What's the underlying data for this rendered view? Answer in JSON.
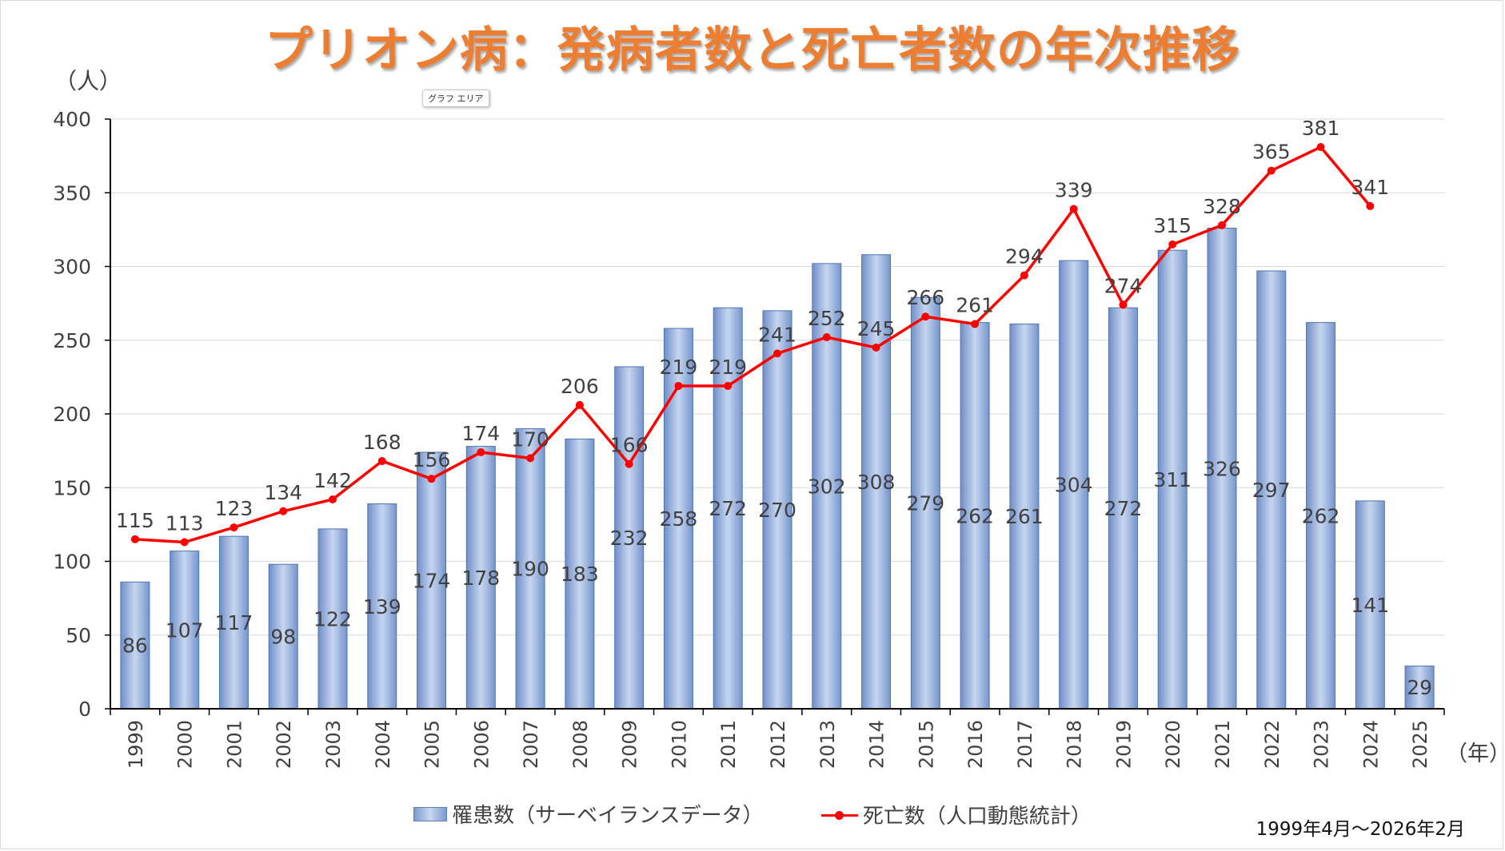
{
  "page": {
    "title": "プリオン病：発病者数と死亡者数の年次推移",
    "y_unit": "（人）",
    "x_unit": "（年）",
    "tooltip": "グラフ エリア",
    "date_range": "1999年4月～2026年2月"
  },
  "chart_data": {
    "type": "bar",
    "categories": [
      "1999",
      "2000",
      "2001",
      "2002",
      "2003",
      "2004",
      "2005",
      "2006",
      "2007",
      "2008",
      "2009",
      "2010",
      "2011",
      "2012",
      "2013",
      "2014",
      "2015",
      "2016",
      "2017",
      "2018",
      "2019",
      "2020",
      "2021",
      "2022",
      "2023",
      "2024",
      "2025"
    ],
    "series": [
      {
        "name": "罹患数（サーベイランスデータ）",
        "type": "bar",
        "color": "#7f9fd3",
        "values": [
          86,
          107,
          117,
          98,
          122,
          139,
          174,
          178,
          190,
          183,
          232,
          258,
          272,
          270,
          302,
          308,
          279,
          262,
          261,
          304,
          272,
          311,
          326,
          297,
          262,
          141,
          29
        ]
      },
      {
        "name": "死亡数（人口動態統計）",
        "type": "line",
        "color": "#ff0000",
        "values": [
          115,
          113,
          123,
          134,
          142,
          168,
          156,
          174,
          170,
          206,
          166,
          219,
          219,
          241,
          252,
          245,
          266,
          261,
          294,
          339,
          274,
          315,
          328,
          365,
          381,
          341,
          null
        ]
      }
    ],
    "ylim": [
      0,
      400
    ],
    "yticks": [
      0,
      50,
      100,
      150,
      200,
      250,
      300,
      350,
      400
    ],
    "grid": true,
    "legend": "bottom"
  }
}
